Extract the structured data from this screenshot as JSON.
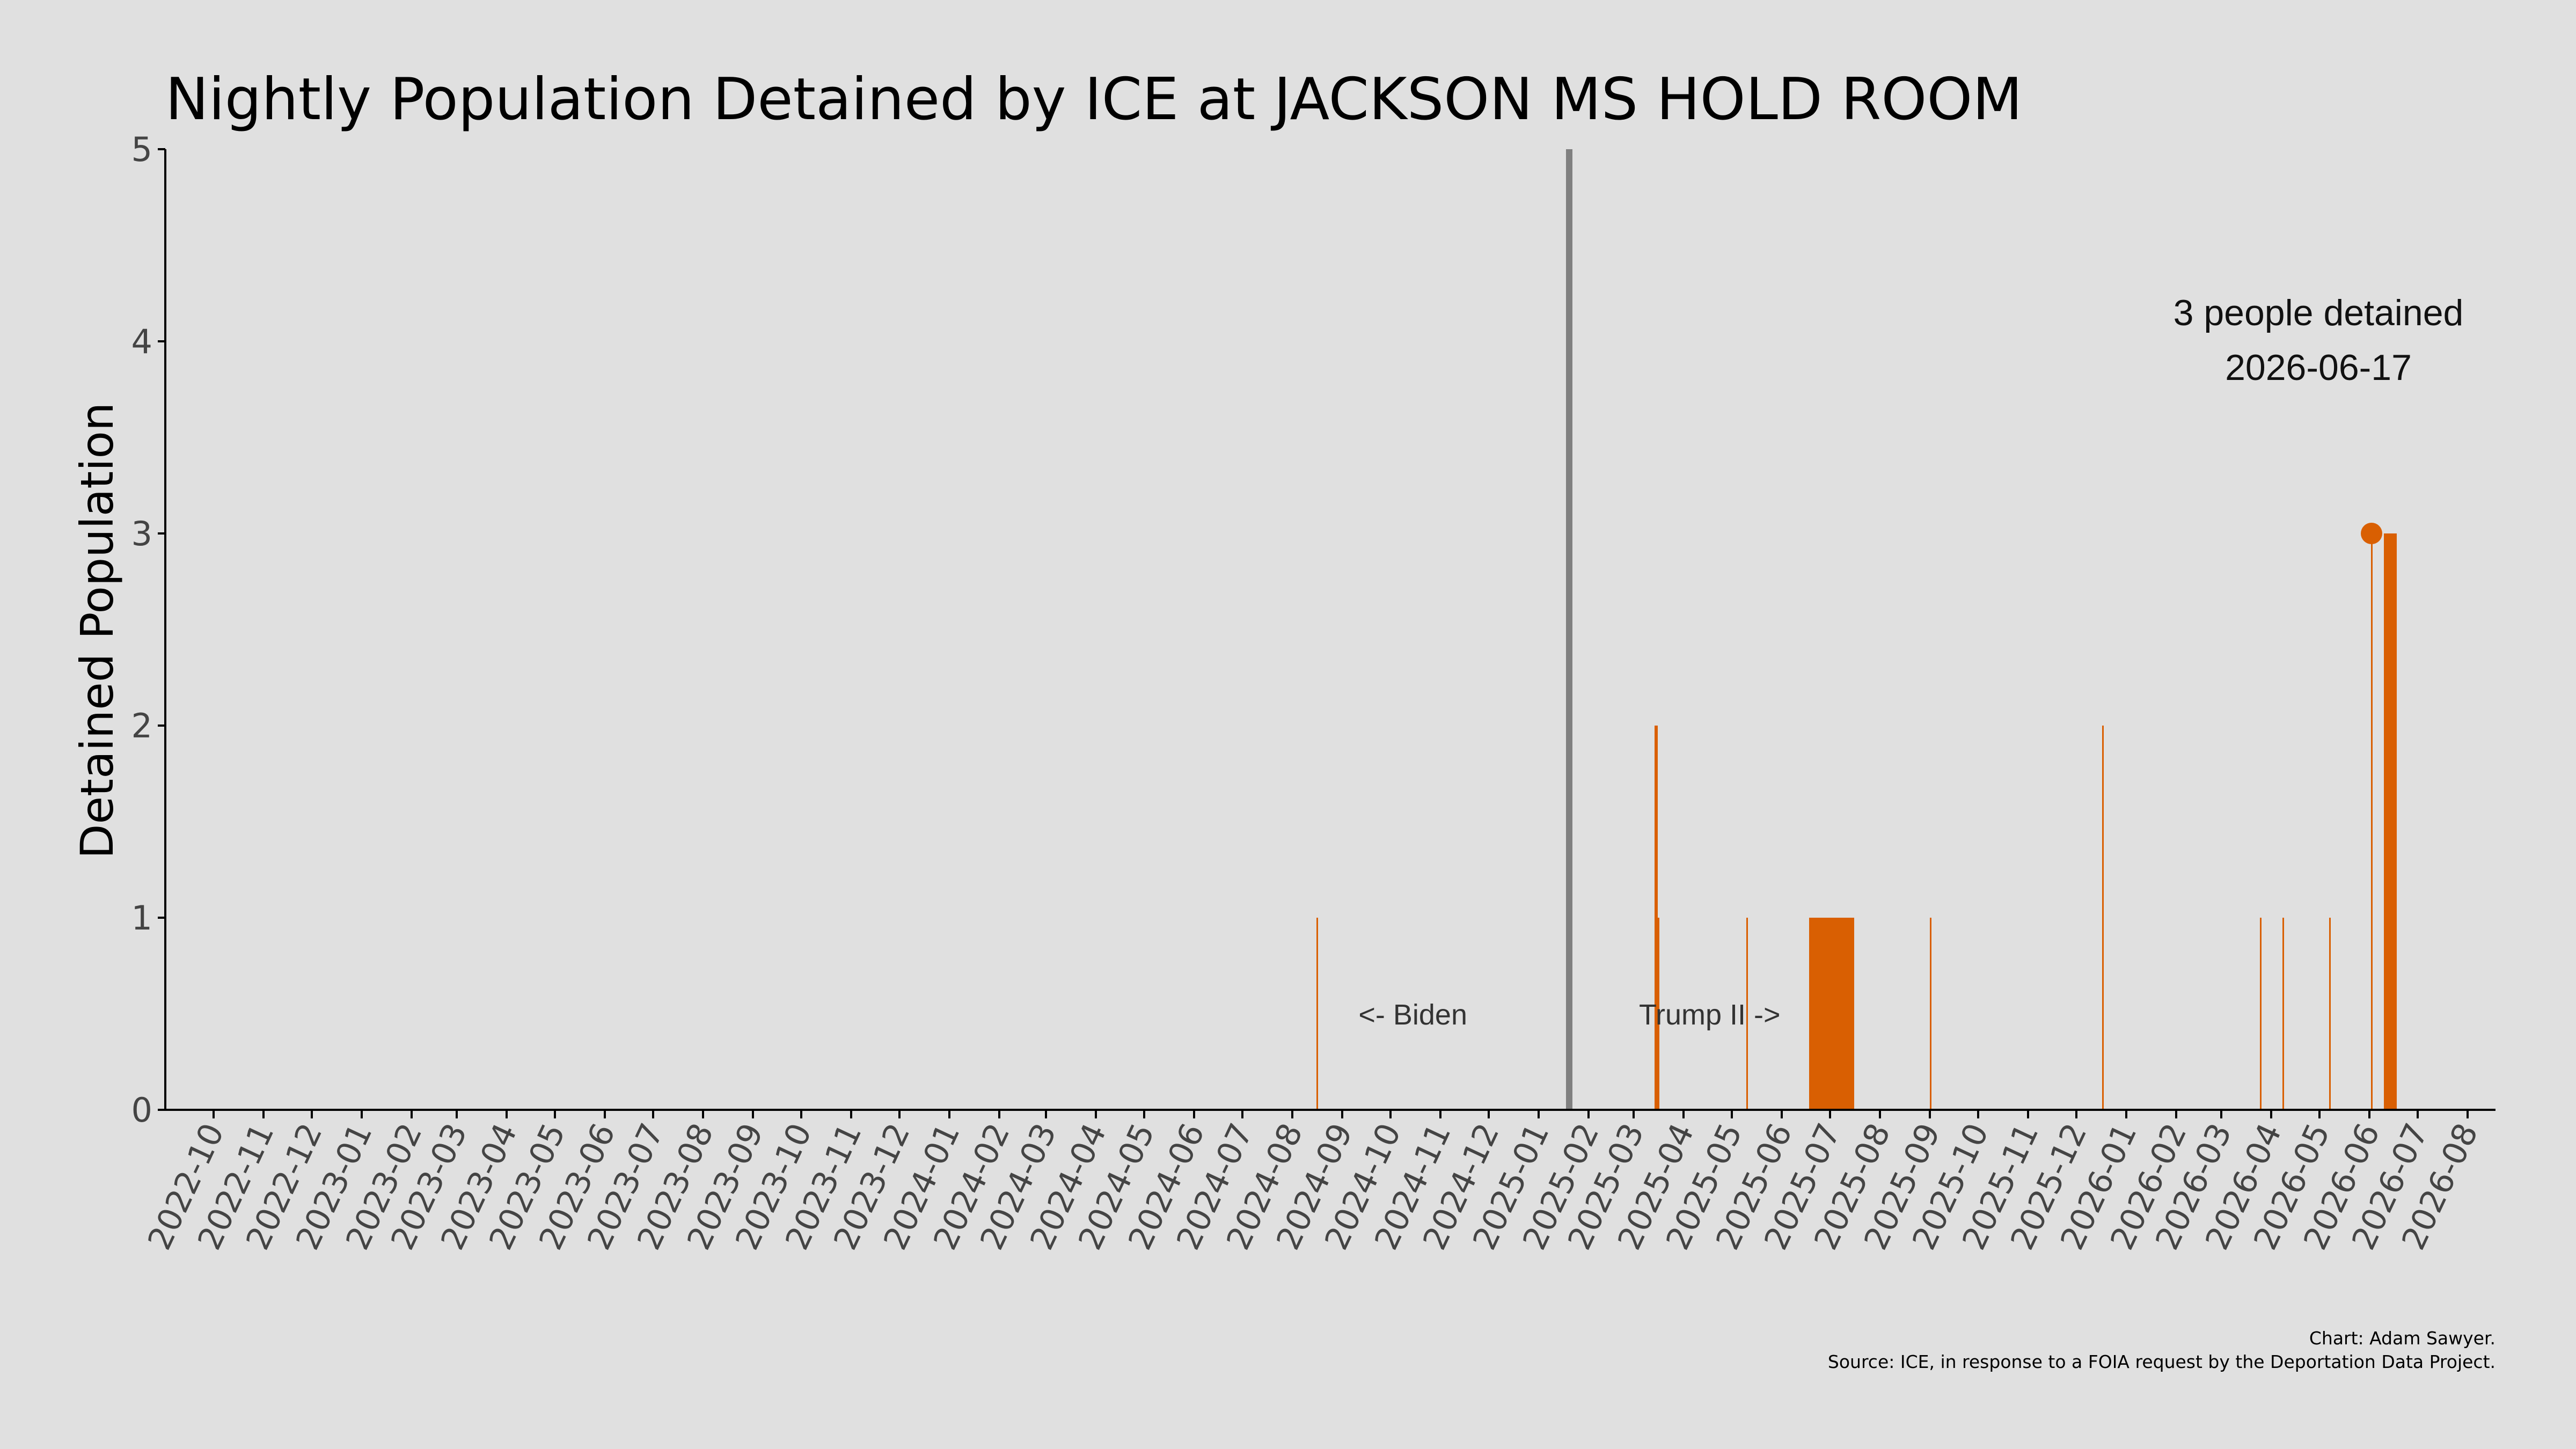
{
  "chart_data": {
    "type": "bar",
    "title": "Nightly Population Detained by ICE at JACKSON MS HOLD ROOM",
    "ylabel": "Detained Population",
    "xlabel": "",
    "ylim": [
      0,
      5
    ],
    "y_ticks": [
      "0",
      "1",
      "2",
      "3",
      "4",
      "5"
    ],
    "x_tick_labels": [
      "2022-10",
      "2022-11",
      "2022-12",
      "2023-01",
      "2023-02",
      "2023-03",
      "2023-04",
      "2023-05",
      "2023-06",
      "2023-07",
      "2023-08",
      "2023-09",
      "2023-10",
      "2023-11",
      "2023-12",
      "2024-01",
      "2024-02",
      "2024-03",
      "2024-04",
      "2024-05",
      "2024-06",
      "2024-07",
      "2024-08",
      "2024-09",
      "2024-10",
      "2024-11",
      "2024-12",
      "2025-01",
      "2025-02",
      "2025-03",
      "2025-04",
      "2025-05",
      "2025-06",
      "2025-07",
      "2025-08",
      "2025-09",
      "2025-10",
      "2025-11",
      "2025-12",
      "2026-01",
      "2026-02",
      "2026-03",
      "2026-04",
      "2026-05",
      "2026-06",
      "2026-07",
      "2026-08"
    ],
    "grid": false,
    "bar_color": "#d95f02",
    "points": [
      {
        "date": "2024-08-16",
        "value": 1
      },
      {
        "date": "2025-03-14",
        "value": 2
      },
      {
        "date": "2025-03-15",
        "value": 2
      },
      {
        "date": "2025-03-16",
        "value": 1
      },
      {
        "date": "2025-05-10",
        "value": 1
      },
      {
        "date": "2025-06-18",
        "value": 1
      },
      {
        "date": "2025-06-19",
        "value": 1
      },
      {
        "date": "2025-06-20",
        "value": 1
      },
      {
        "date": "2025-06-21",
        "value": 1
      },
      {
        "date": "2025-06-22",
        "value": 1
      },
      {
        "date": "2025-06-23",
        "value": 1
      },
      {
        "date": "2025-06-24",
        "value": 1
      },
      {
        "date": "2025-06-25",
        "value": 1
      },
      {
        "date": "2025-06-26",
        "value": 1
      },
      {
        "date": "2025-06-27",
        "value": 1
      },
      {
        "date": "2025-06-28",
        "value": 1
      },
      {
        "date": "2025-06-29",
        "value": 1
      },
      {
        "date": "2025-06-30",
        "value": 1
      },
      {
        "date": "2025-07-01",
        "value": 1
      },
      {
        "date": "2025-07-02",
        "value": 1
      },
      {
        "date": "2025-07-03",
        "value": 1
      },
      {
        "date": "2025-07-04",
        "value": 1
      },
      {
        "date": "2025-07-05",
        "value": 1
      },
      {
        "date": "2025-07-06",
        "value": 1
      },
      {
        "date": "2025-07-07",
        "value": 1
      },
      {
        "date": "2025-07-08",
        "value": 1
      },
      {
        "date": "2025-07-09",
        "value": 1
      },
      {
        "date": "2025-07-10",
        "value": 1
      },
      {
        "date": "2025-07-11",
        "value": 1
      },
      {
        "date": "2025-07-12",
        "value": 1
      },
      {
        "date": "2025-07-13",
        "value": 1
      },
      {
        "date": "2025-07-14",
        "value": 1
      },
      {
        "date": "2025-07-15",
        "value": 1
      },
      {
        "date": "2025-09-01",
        "value": 1
      },
      {
        "date": "2025-12-17",
        "value": 2
      },
      {
        "date": "2026-03-25",
        "value": 1
      },
      {
        "date": "2026-04-08",
        "value": 1
      },
      {
        "date": "2026-05-07",
        "value": 1
      },
      {
        "date": "2026-06-02",
        "value": 3
      },
      {
        "date": "2026-06-10",
        "value": 3
      },
      {
        "date": "2026-06-11",
        "value": 3
      },
      {
        "date": "2026-06-12",
        "value": 3
      },
      {
        "date": "2026-06-13",
        "value": 3
      },
      {
        "date": "2026-06-14",
        "value": 3
      },
      {
        "date": "2026-06-15",
        "value": 3
      },
      {
        "date": "2026-06-16",
        "value": 3
      },
      {
        "date": "2026-06-17",
        "value": 3
      }
    ],
    "divider": {
      "date": "2025-01-20",
      "color": "#808080"
    },
    "era_labels": {
      "left": "<- Biden",
      "right": "Trump II ->"
    },
    "highlight": {
      "date": "2026-06-02",
      "value": 3,
      "label_line1": "3 people detained",
      "label_line2": "2026-06-17"
    }
  },
  "credits": {
    "line1": "Chart: Adam Sawyer.",
    "line2": "Source: ICE, in response to a FOIA request by the Deportation Data Project."
  }
}
